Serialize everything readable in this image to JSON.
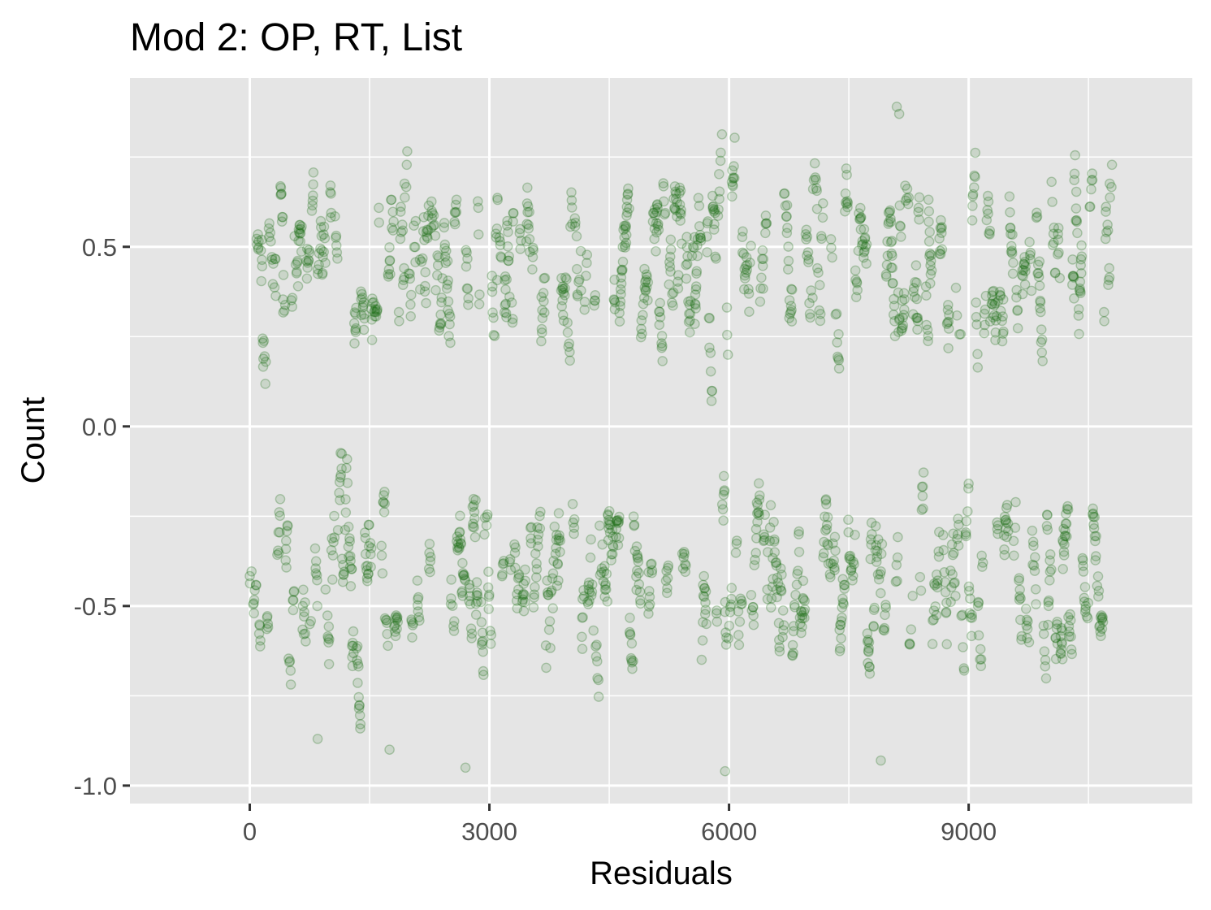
{
  "chart_data": {
    "type": "scatter",
    "title": "Mod 2: OP, RT, List",
    "xlabel": "Residuals",
    "ylabel": "Count",
    "xlim": [
      -1500,
      11800
    ],
    "ylim": [
      -1.05,
      0.97
    ],
    "x_ticks": [
      0,
      3000,
      6000,
      9000
    ],
    "x_tick_labels": [
      "0",
      "3000",
      "6000",
      "9000"
    ],
    "y_ticks": [
      -1.0,
      -0.5,
      0.0,
      0.5
    ],
    "y_tick_labels": [
      "-1.0",
      "-0.5",
      "0.0",
      "0.5"
    ],
    "grid": true,
    "point_color": "#1a6b12",
    "n_points_approx": 10800,
    "x_range": [
      0,
      10800
    ],
    "clusters": [
      {
        "name": "upper band",
        "y_center": 0.47,
        "y_range": [
          0.04,
          0.9
        ]
      },
      {
        "name": "lower band",
        "y_center": -0.43,
        "y_range": [
          -0.96,
          -0.07
        ]
      }
    ],
    "outliers": [
      {
        "x": 8100,
        "y": 0.89
      },
      {
        "x": 8130,
        "y": 0.87
      },
      {
        "x": 7900,
        "y": -0.93
      },
      {
        "x": 5950,
        "y": -0.96
      },
      {
        "x": 2700,
        "y": -0.95
      },
      {
        "x": 850,
        "y": -0.87
      },
      {
        "x": 1750,
        "y": -0.9
      }
    ]
  }
}
